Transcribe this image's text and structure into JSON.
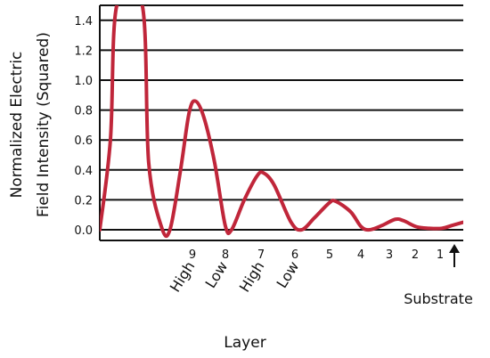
{
  "chart_data": {
    "type": "line",
    "ylabel": [
      "Normalized Electric",
      "Field Intensity (Squared)"
    ],
    "xlabel": "Layer",
    "ylim": [
      0,
      1.5
    ],
    "yticks": [
      "0.0",
      "0.2",
      "0.4",
      "0.6",
      "0.8",
      "1.0",
      "1.2",
      "1.4"
    ],
    "layer_numbers": [
      "9",
      "8",
      "7",
      "6",
      "5",
      "4",
      "3",
      "2",
      "1"
    ],
    "rotated_labels": [
      "High",
      "Low",
      "High",
      "Low"
    ],
    "substrate_label": "Substrate",
    "grid": true,
    "series": [
      {
        "color": "#c0263a",
        "points": [
          [
            0.0,
            0.0
          ],
          [
            0.25,
            0.6
          ],
          [
            0.4,
            1.5
          ],
          [
            1.0,
            1.5
          ],
          [
            1.15,
            0.45
          ],
          [
            1.45,
            0.02
          ],
          [
            1.65,
            0.0
          ],
          [
            1.9,
            0.4
          ],
          [
            2.1,
            0.78
          ],
          [
            2.25,
            0.86
          ],
          [
            2.45,
            0.75
          ],
          [
            2.7,
            0.45
          ],
          [
            2.95,
            0.03
          ],
          [
            3.1,
            0.0
          ],
          [
            3.4,
            0.2
          ],
          [
            3.7,
            0.36
          ],
          [
            3.85,
            0.38
          ],
          [
            4.1,
            0.3
          ],
          [
            4.5,
            0.05
          ],
          [
            4.75,
            0.0
          ],
          [
            5.05,
            0.08
          ],
          [
            5.4,
            0.18
          ],
          [
            5.55,
            0.19
          ],
          [
            5.9,
            0.12
          ],
          [
            6.15,
            0.02
          ],
          [
            6.35,
            0.0
          ],
          [
            6.65,
            0.03
          ],
          [
            6.95,
            0.07
          ],
          [
            7.15,
            0.06
          ],
          [
            7.45,
            0.02
          ],
          [
            7.75,
            0.01
          ],
          [
            8.05,
            0.01
          ],
          [
            8.3,
            0.03
          ],
          [
            8.55,
            0.05
          ]
        ]
      }
    ],
    "xlim": [
      0,
      8.55
    ]
  }
}
